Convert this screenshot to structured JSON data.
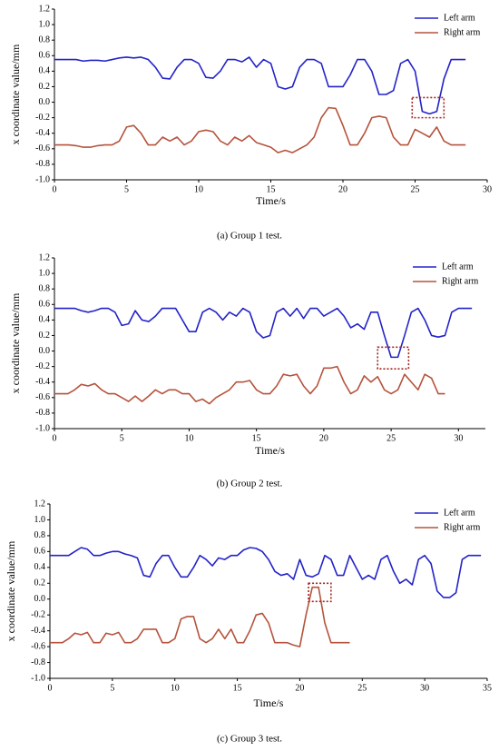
{
  "chart_data": [
    {
      "type": "line",
      "x_label": "Time/s",
      "y_label": "x coordinate value/mm",
      "caption": "(a) Group 1 test.",
      "legend": "upper right",
      "x": [
        0,
        0.5,
        1,
        1.5,
        2,
        2.5,
        3,
        3.5,
        4,
        4.5,
        5,
        5.5,
        6,
        6.5,
        7,
        7.5,
        8,
        8.5,
        9,
        9.5,
        10,
        10.5,
        11,
        11.5,
        12,
        12.5,
        13,
        13.5,
        14,
        14.5,
        15,
        15.5,
        16,
        16.5,
        17,
        17.5,
        18,
        18.5,
        19,
        19.5,
        20,
        20.5,
        21,
        21.5,
        22,
        22.5,
        23,
        23.5,
        24,
        24.5,
        25,
        25.5,
        26,
        26.5,
        27,
        27.5,
        28,
        28.5
      ],
      "series": [
        {
          "name": "Left arm",
          "color": "#2323c8",
          "values": [
            0.55,
            0.55,
            0.55,
            0.55,
            0.53,
            0.54,
            0.54,
            0.53,
            0.55,
            0.57,
            0.58,
            0.57,
            0.58,
            0.55,
            0.45,
            0.31,
            0.3,
            0.45,
            0.55,
            0.55,
            0.5,
            0.32,
            0.31,
            0.4,
            0.55,
            0.55,
            0.52,
            0.58,
            0.45,
            0.55,
            0.5,
            0.2,
            0.17,
            0.2,
            0.45,
            0.55,
            0.55,
            0.5,
            0.2,
            0.2,
            0.2,
            0.35,
            0.55,
            0.55,
            0.4,
            0.1,
            0.1,
            0.15,
            0.5,
            0.55,
            0.4,
            -0.12,
            -0.15,
            -0.12,
            0.3,
            0.55,
            0.55,
            0.55
          ]
        },
        {
          "name": "Right arm",
          "color": "#b5533c",
          "values": [
            -0.55,
            -0.55,
            -0.55,
            -0.56,
            -0.58,
            -0.58,
            -0.56,
            -0.55,
            -0.55,
            -0.5,
            -0.32,
            -0.3,
            -0.4,
            -0.55,
            -0.55,
            -0.45,
            -0.5,
            -0.45,
            -0.55,
            -0.5,
            -0.38,
            -0.36,
            -0.38,
            -0.5,
            -0.55,
            -0.45,
            -0.5,
            -0.43,
            -0.52,
            -0.55,
            -0.58,
            -0.65,
            -0.62,
            -0.65,
            -0.6,
            -0.55,
            -0.45,
            -0.2,
            -0.07,
            -0.08,
            -0.3,
            -0.55,
            -0.55,
            -0.4,
            -0.2,
            -0.18,
            -0.2,
            -0.45,
            -0.55,
            -0.55,
            -0.35,
            -0.4,
            -0.45,
            -0.32,
            -0.5,
            -0.55,
            -0.55,
            -0.55
          ]
        }
      ],
      "xlim": [
        0,
        30
      ],
      "xticks": [
        0,
        5,
        10,
        15,
        20,
        25,
        30
      ],
      "ylim": [
        -1,
        1.2
      ],
      "yticks": [
        {
          "value": -1,
          "label": "-1.0"
        },
        -0.8,
        -0.6,
        -0.4,
        -0.2,
        {
          "value": 0,
          "label": "0.0"
        },
        0.2,
        0.4,
        0.6,
        0.8,
        {
          "value": 1,
          "label": "1.0"
        },
        1.2
      ],
      "highlight_box": {
        "xlim": [
          24.8,
          27
        ],
        "ylim": [
          -0.2,
          0.06
        ],
        "color": "#a0261e"
      }
    },
    {
      "type": "line",
      "x_label": "Time/s",
      "y_label": "x coordinate value/mm",
      "caption": "(b) Group 2 test.",
      "legend": "upper right",
      "x": [
        0,
        0.5,
        1,
        1.5,
        2,
        2.5,
        3,
        3.5,
        4,
        4.5,
        5,
        5.5,
        6,
        6.5,
        7,
        7.5,
        8,
        8.5,
        9,
        9.5,
        10,
        10.5,
        11,
        11.5,
        12,
        12.5,
        13,
        13.5,
        14,
        14.5,
        15,
        15.5,
        16,
        16.5,
        17,
        17.5,
        18,
        18.5,
        19,
        19.5,
        20,
        20.5,
        21,
        21.5,
        22,
        22.5,
        23,
        23.5,
        24,
        24.5,
        25,
        25.5,
        26,
        26.5,
        27,
        27.5,
        28,
        28.5,
        29,
        29.5,
        30,
        30.5,
        31
      ],
      "series": [
        {
          "name": "Left arm",
          "color": "#2323c8",
          "values": [
            0.55,
            0.55,
            0.55,
            0.55,
            0.52,
            0.5,
            0.52,
            0.55,
            0.55,
            0.5,
            0.33,
            0.35,
            0.52,
            0.4,
            0.38,
            0.45,
            0.55,
            0.55,
            0.55,
            0.4,
            0.25,
            0.25,
            0.5,
            0.55,
            0.5,
            0.4,
            0.5,
            0.45,
            0.55,
            0.5,
            0.25,
            0.17,
            0.2,
            0.5,
            0.55,
            0.45,
            0.55,
            0.42,
            0.55,
            0.55,
            0.45,
            0.5,
            0.55,
            0.45,
            0.3,
            0.35,
            0.28,
            0.5,
            0.5,
            0.2,
            -0.08,
            -0.08,
            0.2,
            0.5,
            0.55,
            0.4,
            0.2,
            0.18,
            0.2,
            0.5,
            0.55,
            0.55,
            0.55
          ]
        },
        {
          "name": "Right arm",
          "color": "#b5533c",
          "values": [
            -0.55,
            -0.55,
            -0.55,
            -0.5,
            -0.43,
            -0.45,
            -0.42,
            -0.5,
            -0.55,
            -0.55,
            -0.6,
            -0.65,
            -0.58,
            -0.65,
            -0.58,
            -0.5,
            -0.55,
            -0.5,
            -0.5,
            -0.55,
            -0.55,
            -0.65,
            -0.62,
            -0.68,
            -0.6,
            -0.55,
            -0.5,
            -0.4,
            -0.4,
            -0.38,
            -0.5,
            -0.55,
            -0.55,
            -0.45,
            -0.3,
            -0.32,
            -0.3,
            -0.45,
            -0.55,
            -0.45,
            -0.22,
            -0.22,
            -0.2,
            -0.4,
            -0.55,
            -0.5,
            -0.32,
            -0.4,
            -0.33,
            -0.5,
            -0.55,
            -0.5,
            -0.3,
            -0.4,
            -0.5,
            -0.3,
            -0.35,
            -0.55,
            -0.55,
            null,
            null,
            null,
            null
          ]
        }
      ],
      "xlim": [
        0,
        32
      ],
      "xticks": [
        0,
        5,
        10,
        15,
        20,
        25,
        30
      ],
      "ylim": [
        -1,
        1.2
      ],
      "yticks": [
        {
          "value": -1,
          "label": "-1.0"
        },
        -0.8,
        -0.6,
        -0.4,
        -0.2,
        {
          "value": 0,
          "label": "0.0"
        },
        0.2,
        0.4,
        0.6,
        0.8,
        {
          "value": 1,
          "label": "1.0"
        },
        1.2
      ],
      "highlight_box": {
        "xlim": [
          24,
          26.3
        ],
        "ylim": [
          -0.23,
          0.05
        ],
        "color": "#a0261e"
      }
    },
    {
      "type": "line",
      "x_label": "Time/s",
      "y_label": "x coordinate value/mm",
      "caption": "(c) Group 3 test.",
      "legend": "upper right",
      "x": [
        0,
        0.5,
        1,
        1.5,
        2,
        2.5,
        3,
        3.5,
        4,
        4.5,
        5,
        5.5,
        6,
        6.5,
        7,
        7.5,
        8,
        8.5,
        9,
        9.5,
        10,
        10.5,
        11,
        11.5,
        12,
        12.5,
        13,
        13.5,
        14,
        14.5,
        15,
        15.5,
        16,
        16.5,
        17,
        17.5,
        18,
        18.5,
        19,
        19.5,
        20,
        20.5,
        21,
        21.5,
        22,
        22.5,
        23,
        23.5,
        24,
        24.5,
        25,
        25.5,
        26,
        26.5,
        27,
        27.5,
        28,
        28.5,
        29,
        29.5,
        30,
        30.5,
        31,
        31.5,
        32,
        32.5,
        33,
        33.5,
        34,
        34.5
      ],
      "series": [
        {
          "name": "Left arm",
          "color": "#2323c8",
          "values": [
            0.55,
            0.55,
            0.55,
            0.55,
            0.6,
            0.65,
            0.63,
            0.55,
            0.55,
            0.58,
            0.6,
            0.6,
            0.57,
            0.55,
            0.52,
            0.3,
            0.28,
            0.45,
            0.55,
            0.55,
            0.4,
            0.28,
            0.28,
            0.4,
            0.55,
            0.5,
            0.42,
            0.52,
            0.5,
            0.55,
            0.55,
            0.62,
            0.65,
            0.64,
            0.6,
            0.5,
            0.35,
            0.3,
            0.32,
            0.25,
            0.5,
            0.3,
            0.28,
            0.32,
            0.55,
            0.5,
            0.3,
            0.3,
            0.55,
            0.4,
            0.25,
            0.3,
            0.25,
            0.5,
            0.55,
            0.35,
            0.2,
            0.25,
            0.18,
            0.5,
            0.55,
            0.45,
            0.1,
            0.02,
            0.02,
            0.08,
            0.5,
            0.55,
            0.55,
            0.55
          ]
        },
        {
          "name": "Right arm",
          "color": "#b5533c",
          "values": [
            -0.55,
            -0.55,
            -0.55,
            -0.5,
            -0.43,
            -0.45,
            -0.42,
            -0.55,
            -0.55,
            -0.43,
            -0.45,
            -0.42,
            -0.55,
            -0.55,
            -0.5,
            -0.38,
            -0.38,
            -0.38,
            -0.55,
            -0.55,
            -0.5,
            -0.25,
            -0.22,
            -0.22,
            -0.5,
            -0.55,
            -0.5,
            -0.38,
            -0.5,
            -0.38,
            -0.55,
            -0.55,
            -0.4,
            -0.2,
            -0.18,
            -0.3,
            -0.55,
            -0.55,
            -0.55,
            -0.58,
            -0.6,
            -0.2,
            0.15,
            0.15,
            -0.3,
            -0.55,
            -0.55,
            -0.55,
            -0.55,
            null,
            null,
            null,
            null,
            null,
            null,
            null,
            null,
            null,
            null,
            null,
            null,
            null,
            null,
            null,
            null,
            null,
            null,
            null,
            null,
            null
          ]
        }
      ],
      "xlim": [
        0,
        35
      ],
      "xticks": [
        0,
        5,
        10,
        15,
        20,
        25,
        30,
        35
      ],
      "ylim": [
        -1,
        1.2
      ],
      "yticks": [
        {
          "value": -1,
          "label": "-1.0"
        },
        -0.8,
        -0.6,
        -0.4,
        -0.2,
        {
          "value": 0,
          "label": "0.0"
        },
        0.2,
        0.4,
        0.6,
        0.8,
        {
          "value": 1,
          "label": "1.0"
        },
        1.2
      ],
      "highlight_box": {
        "xlim": [
          20.7,
          22.5
        ],
        "ylim": [
          -0.03,
          0.2
        ],
        "color": "#a0261e"
      }
    }
  ]
}
